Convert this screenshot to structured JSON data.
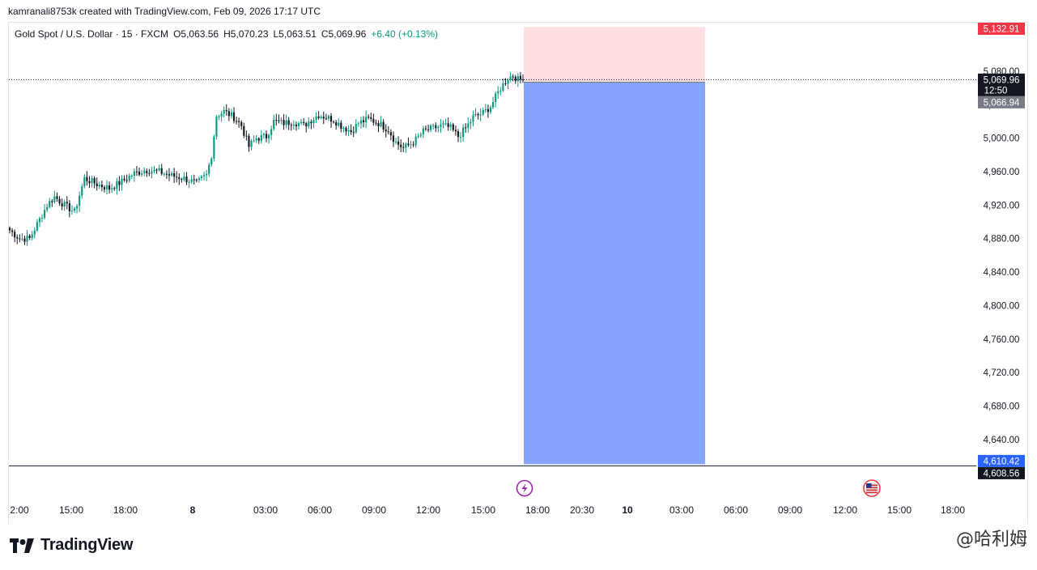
{
  "header": {
    "credit": "kamranali8753k created with TradingView.com, Feb 09, 2026 17:17 UTC"
  },
  "legend": {
    "symbol": "Gold Spot / U.S. Dollar · 15 · FXCM",
    "open": "O5,063.56",
    "high": "H5,070.23",
    "low": "L5,063.51",
    "close": "C5,069.96",
    "change": "+6.40 (+0.13%)"
  },
  "price_tags": {
    "stop": "5,132.91",
    "last": "5,069.96",
    "countdown": "12:50",
    "entry": "5,066.94",
    "target": "4,610.42",
    "crosshair": "4,608.56"
  },
  "footer": {
    "logo_text": "TradingView",
    "watermark": "@哈利姆"
  },
  "colors": {
    "up": "#089981",
    "down": "#131722",
    "stop_zone": "#ffdfe2",
    "target_zone": "#85a4fc",
    "stop_tag": "#f23645",
    "target_tag": "#2962ff",
    "last_tag": "#131722",
    "entry_tag": "#787b86"
  },
  "chart_data": {
    "type": "candlestick",
    "ylim": [
      4605,
      5138
    ],
    "y_ticks": [
      5080,
      5040,
      5000,
      4960,
      4920,
      4880,
      4840,
      4800,
      4760,
      4720,
      4680,
      4640
    ],
    "y_tick_labels": [
      "5,080.00",
      "5,040.00",
      "5,000.00",
      "4,960.00",
      "4,920.00",
      "4,880.00",
      "4,840.00",
      "4,800.00",
      "4,760.00",
      "4,720.00",
      "4,680.00",
      "4,640.00"
    ],
    "x_labels": [
      {
        "label": "2:00",
        "bold": false
      },
      {
        "label": "15:00",
        "bold": false
      },
      {
        "label": "18:00",
        "bold": false
      },
      {
        "label": "8",
        "bold": true
      },
      {
        "label": "03:00",
        "bold": false
      },
      {
        "label": "06:00",
        "bold": false
      },
      {
        "label": "09:00",
        "bold": false
      },
      {
        "label": "12:00",
        "bold": false
      },
      {
        "label": "15:00",
        "bold": false
      },
      {
        "label": "18:00",
        "bold": false
      },
      {
        "label": "20:30",
        "bold": false
      },
      {
        "label": "10",
        "bold": true
      },
      {
        "label": "03:00",
        "bold": false
      },
      {
        "label": "06:00",
        "bold": false
      },
      {
        "label": "09:00",
        "bold": false
      },
      {
        "label": "12:00",
        "bold": false
      },
      {
        "label": "15:00",
        "bold": false
      },
      {
        "label": "18:00",
        "bold": false
      }
    ],
    "anchors": [
      [
        0,
        4890
      ],
      [
        4,
        4880
      ],
      [
        8,
        4880
      ],
      [
        12,
        4903
      ],
      [
        15,
        4920
      ],
      [
        18,
        4930
      ],
      [
        22,
        4920
      ],
      [
        26,
        4912
      ],
      [
        30,
        4952
      ],
      [
        35,
        4945
      ],
      [
        40,
        4940
      ],
      [
        45,
        4948
      ],
      [
        50,
        4958
      ],
      [
        55,
        4962
      ],
      [
        60,
        4960
      ],
      [
        65,
        4955
      ],
      [
        70,
        4952
      ],
      [
        75,
        4946
      ],
      [
        79,
        4956
      ],
      [
        81,
        4980
      ],
      [
        83,
        5027
      ],
      [
        86,
        5032
      ],
      [
        90,
        5025
      ],
      [
        93,
        5015
      ],
      [
        96,
        4990
      ],
      [
        99,
        5000
      ],
      [
        103,
        5002
      ],
      [
        106,
        5020
      ],
      [
        110,
        5018
      ],
      [
        114,
        5020
      ],
      [
        118,
        5015
      ],
      [
        121,
        5022
      ],
      [
        124,
        5028
      ],
      [
        127,
        5025
      ],
      [
        130,
        5022
      ],
      [
        133,
        5015
      ],
      [
        137,
        5008
      ],
      [
        140,
        5018
      ],
      [
        144,
        5023
      ],
      [
        148,
        5018
      ],
      [
        152,
        5010
      ],
      [
        155,
        4995
      ],
      [
        158,
        4988
      ],
      [
        162,
        4995
      ],
      [
        166,
        5008
      ],
      [
        170,
        5012
      ],
      [
        174,
        5015
      ],
      [
        177,
        5012
      ],
      [
        180,
        5002
      ],
      [
        183,
        5012
      ],
      [
        186,
        5025
      ],
      [
        190,
        5030
      ],
      [
        193,
        5038
      ],
      [
        197,
        5060
      ],
      [
        200,
        5072
      ],
      [
        202,
        5075
      ],
      [
        204,
        5070
      ],
      [
        206,
        5069.96
      ]
    ],
    "last_price": 5069.96,
    "position": {
      "type": "short",
      "entry": 5066.94,
      "stop": 5132.91,
      "target": 4610.42
    },
    "crosshair_price": 4608.56
  }
}
